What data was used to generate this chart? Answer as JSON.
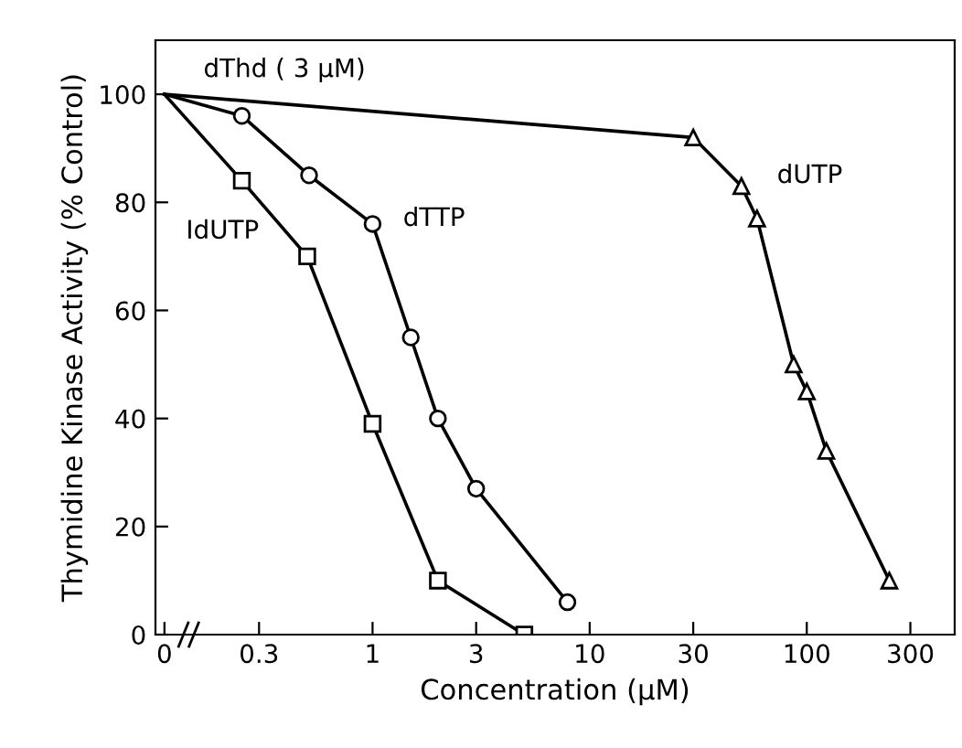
{
  "chart_data": {
    "type": "line",
    "xlabel": "Concentration (μM)",
    "ylabel": "Thymidine Kinase Activity (% Control)",
    "annotations": [
      "dThd ( 3 μM)"
    ],
    "log": "x",
    "xlim": [
      0.1,
      480
    ],
    "ylim": [
      0,
      110
    ],
    "xticks": [
      {
        "value": 0.11,
        "label": "0"
      },
      0.3,
      1,
      3,
      10,
      30,
      100,
      300
    ],
    "yticks": [
      0,
      20,
      40,
      60,
      80,
      100
    ],
    "grid": false,
    "legend": false,
    "line_style": "solid",
    "series": [
      {
        "name": "dUTP",
        "color": "#000000",
        "marker": "triangle",
        "x": [
          0.11,
          30,
          50,
          59,
          87,
          100,
          123,
          240
        ],
        "values": [
          100,
          92,
          83,
          77,
          50,
          45,
          34,
          10
        ]
      },
      {
        "name": "dTTP",
        "color": "#000000",
        "marker": "circle",
        "x": [
          0.11,
          0.25,
          0.51,
          1,
          1.5,
          2,
          3,
          7.9
        ],
        "values": [
          100,
          96,
          85,
          76,
          55,
          40,
          27,
          6
        ]
      },
      {
        "name": "IdUTP",
        "color": "#000000",
        "marker": "square",
        "x": [
          0.11,
          0.25,
          0.5,
          1,
          2,
          5
        ],
        "values": [
          100,
          84,
          70,
          39,
          10,
          0
        ]
      }
    ]
  }
}
